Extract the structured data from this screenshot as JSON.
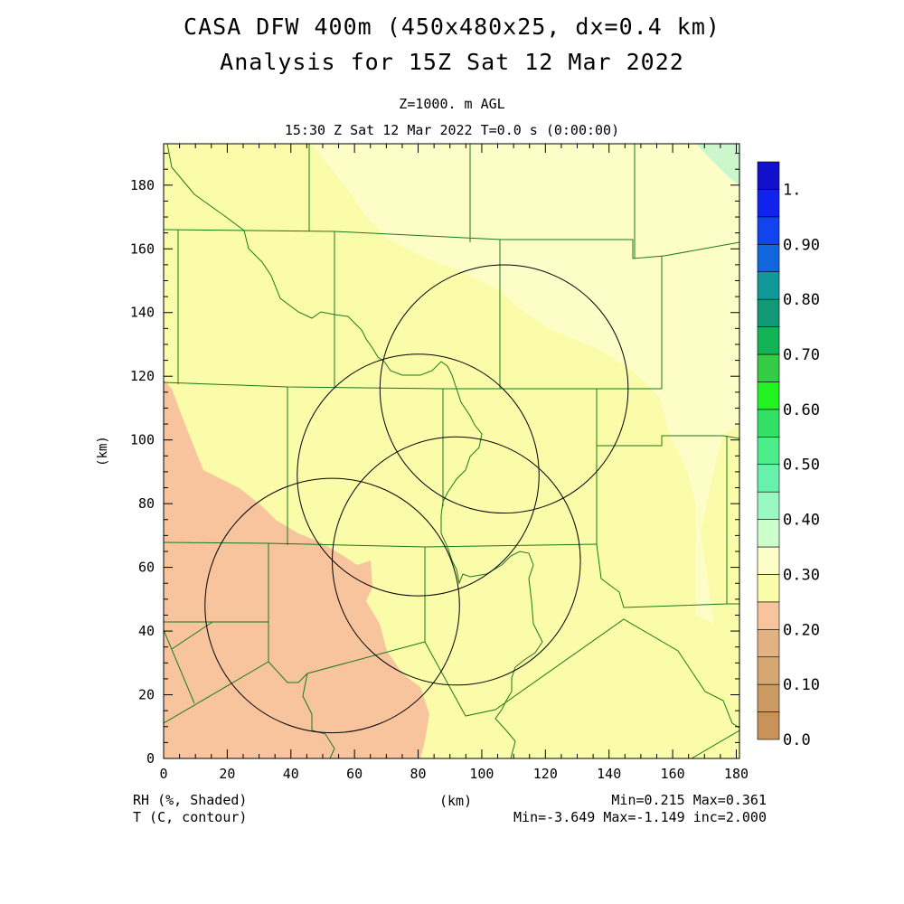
{
  "header": {
    "title_line1": "CASA DFW 400m (450x480x25, dx=0.4 km)",
    "title_line2": "Analysis for 15Z Sat 12 Mar 2022",
    "level": "Z=1000. m AGL",
    "valid_time": "15:30 Z Sat 12 Mar 2022   T=0.0 s (0:00:00)"
  },
  "axes": {
    "xlabel": "(km)",
    "ylabel": "(km)",
    "x_ticks": [
      "0",
      "20",
      "40",
      "60",
      "80",
      "100",
      "120",
      "140",
      "160",
      "180"
    ],
    "y_ticks": [
      "0",
      "20",
      "40",
      "60",
      "80",
      "100",
      "120",
      "140",
      "160",
      "180"
    ],
    "x_range_km": [
      0,
      181
    ],
    "y_range_km": [
      0,
      193
    ]
  },
  "colorbar": {
    "labels": [
      "0.0",
      "0.10",
      "0.20",
      "0.30",
      "0.40",
      "0.50",
      "0.60",
      "0.70",
      "0.80",
      "0.90",
      "1."
    ],
    "colors": [
      "#c8925a",
      "#cc9a63",
      "#d6a673",
      "#e3b282",
      "#f7c49e",
      "#fbfcaa",
      "#fdfdc8",
      "#ccffcc",
      "#99f7c2",
      "#66f2aa",
      "#4ded8c",
      "#33e066",
      "#21f221",
      "#33cc44",
      "#11b355",
      "#119977",
      "#119999",
      "#1166dd",
      "#1144ee",
      "#1122ee",
      "#1111cc"
    ]
  },
  "footer": {
    "rh_label": "RH (%, Shaded)",
    "t_label": "T (C, contour)",
    "xlabel_bottom": "(km)",
    "rh_range": "Min=0.215 Max=0.361",
    "t_range": "Min=-3.649 Max=-1.149 inc=2.000"
  },
  "map_colors": {
    "rh_low": "#f7c49e",
    "rh_mid": "#fbfcaa",
    "rh_high": "#fdfdc8",
    "rh_top": "#ccf6cc",
    "county_lines": "#1a7a1a",
    "radar_rings": "#000000"
  },
  "radar_sites_km": [
    {
      "x": 107,
      "y": 116,
      "r": 39
    },
    {
      "x": 80,
      "y": 89,
      "r": 38
    },
    {
      "x": 92,
      "y": 62,
      "r": 39
    },
    {
      "x": 53,
      "y": 48,
      "r": 40
    }
  ]
}
